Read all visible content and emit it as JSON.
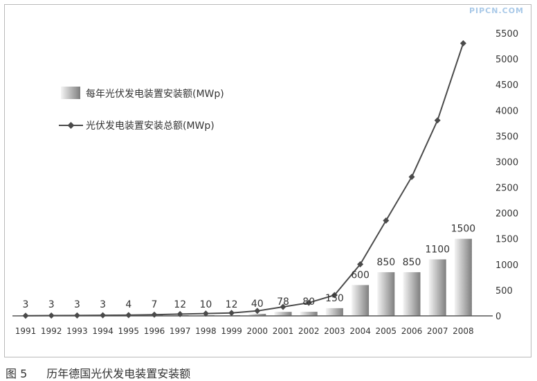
{
  "watermark": "PIPCN.COM",
  "caption": {
    "number": "图 5",
    "text": "历年德国光伏发电装置安装额"
  },
  "colors": {
    "bar_light": "#f2f2f2",
    "bar_dark": "#8a8a8a",
    "line": "#4a4a4a",
    "axis": "#555555",
    "text": "#333333"
  },
  "chart_data": {
    "type": "bar",
    "categories": [
      "1991",
      "1992",
      "1993",
      "1994",
      "1995",
      "1996",
      "1997",
      "1998",
      "1999",
      "2000",
      "2001",
      "2002",
      "2003",
      "2004",
      "2005",
      "2006",
      "2007",
      "2008"
    ],
    "series": [
      {
        "name": "每年光伏发电装置安装额(MWp)",
        "type": "bar",
        "values": [
          3,
          3,
          3,
          3,
          4,
          7,
          12,
          10,
          12,
          40,
          78,
          80,
          150,
          600,
          850,
          850,
          1100,
          1500
        ]
      },
      {
        "name": "光伏发电装置安装总额(MWp)",
        "type": "line",
        "values": [
          3,
          6,
          9,
          12,
          16,
          23,
          35,
          45,
          57,
          97,
          175,
          255,
          405,
          1005,
          1855,
          2705,
          3805,
          5305
        ]
      }
    ],
    "data_labels": [
      "3",
      "3",
      "3",
      "3",
      "4",
      "7",
      "12",
      "10",
      "12",
      "40",
      "78",
      "80",
      "150",
      "600",
      "850",
      "850",
      "1100",
      "1500"
    ],
    "y_axis": {
      "position": "right",
      "ticks": [
        "0",
        "500",
        "1000",
        "1500",
        "2000",
        "2500",
        "3000",
        "3500",
        "4000",
        "4500",
        "5000",
        "5500"
      ],
      "ylim": [
        0,
        5500
      ]
    },
    "legend_position": "top-left",
    "grid": false
  }
}
